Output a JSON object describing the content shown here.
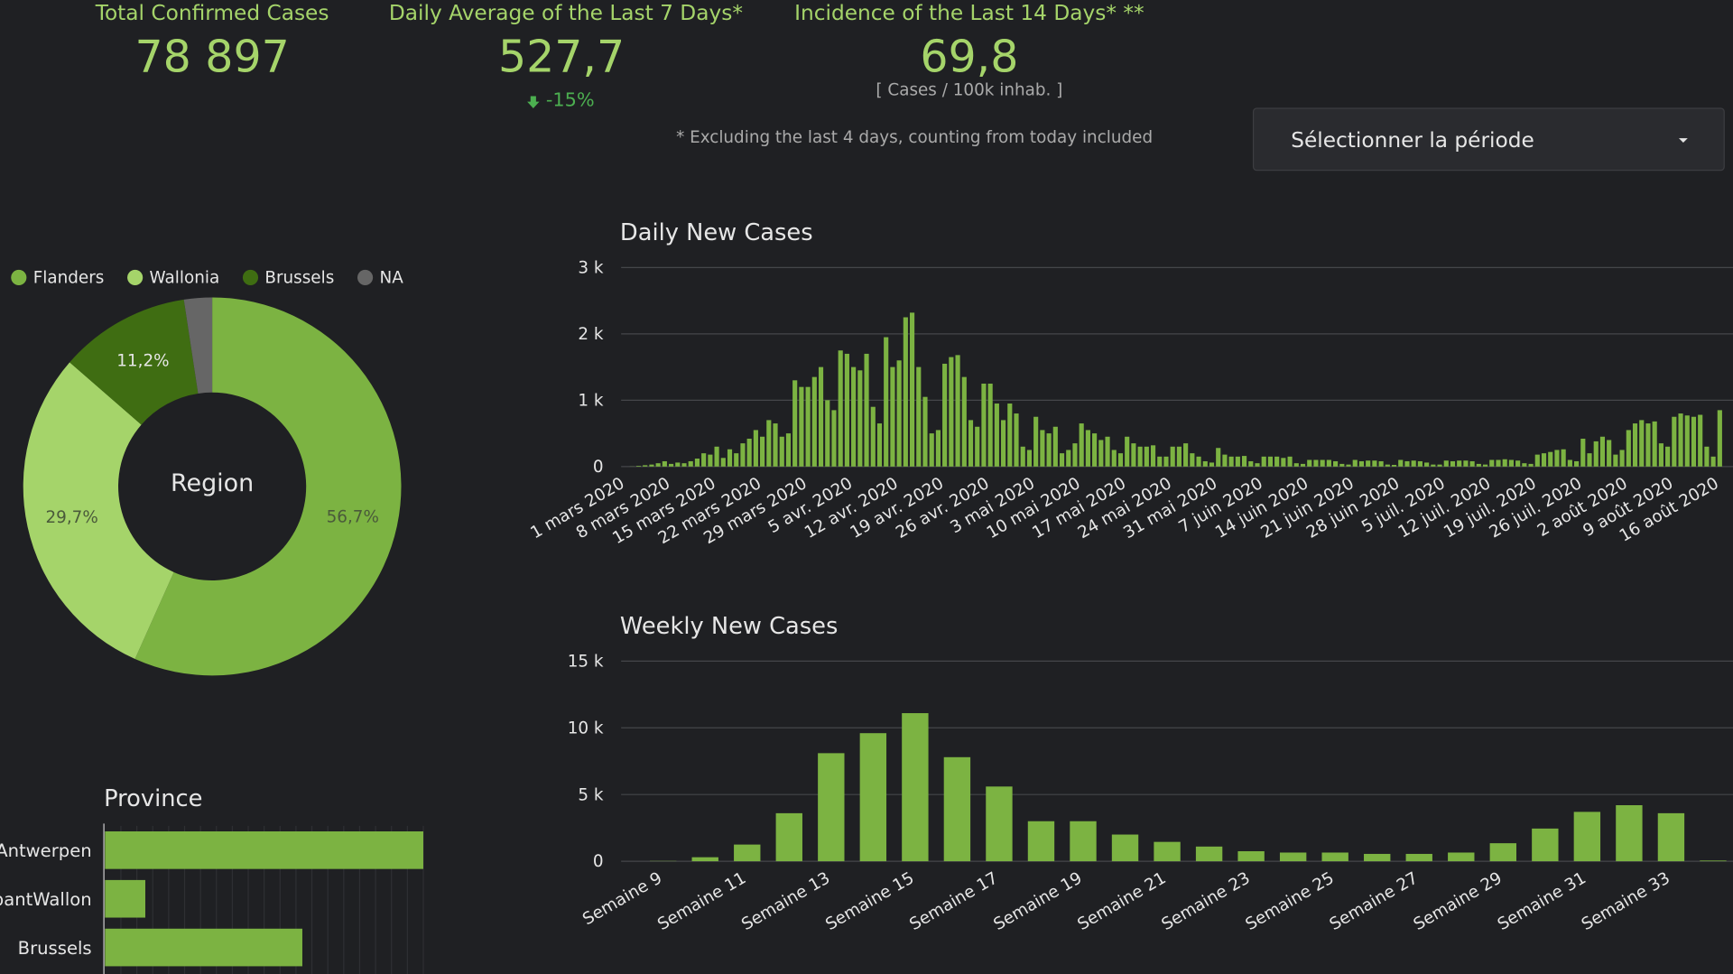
{
  "kpis": [
    {
      "title": "Total Confirmed Cases",
      "value": "78 897"
    },
    {
      "title": "Daily Average of the Last 7 Days*",
      "value": "527,7",
      "change": "-15%"
    },
    {
      "title": "Incidence of the Last 14 Days* **",
      "value": "69,8",
      "unit": "[ Cases / 100k inhab. ]"
    }
  ],
  "footnote": "* Excluding the last 4 days, counting from today included",
  "period_select": "Sélectionner la période",
  "chart_data": [
    {
      "type": "pie",
      "title": "Region",
      "series": [
        {
          "name": "Flanders",
          "color": "#7cb342"
        },
        {
          "name": "Wallonia",
          "color": "#a5d46a"
        },
        {
          "name": "Brussels",
          "color": "#3f6d12"
        },
        {
          "name": "NA",
          "color": "#666666"
        }
      ],
      "values": [
        56.7,
        29.7,
        11.2,
        2.4
      ],
      "value_labels": [
        "56,7%",
        "29,7%",
        "11,2%",
        null
      ]
    },
    {
      "type": "bar",
      "title": "Daily New Cases",
      "color": "#7cb342",
      "grid": true,
      "ylim": [
        0,
        3000
      ],
      "yticks": [
        0,
        {
          "value": 1000,
          "label": "1 k"
        },
        {
          "value": 2000,
          "label": "2 k"
        },
        {
          "value": 3000,
          "label": "3 k"
        }
      ],
      "categories": [
        "1 mars 2020",
        null,
        null,
        null,
        null,
        null,
        null,
        "8 mars 2020",
        null,
        null,
        null,
        null,
        null,
        null,
        "15 mars 2020",
        null,
        null,
        null,
        null,
        null,
        null,
        "22 mars 2020",
        null,
        null,
        null,
        null,
        null,
        null,
        "29 mars 2020",
        null,
        null,
        null,
        null,
        null,
        null,
        "5 avr. 2020",
        null,
        null,
        null,
        null,
        null,
        null,
        "12 avr. 2020",
        null,
        null,
        null,
        null,
        null,
        null,
        "19 avr. 2020",
        null,
        null,
        null,
        null,
        null,
        null,
        "26 avr. 2020",
        null,
        null,
        null,
        null,
        null,
        null,
        "3 mai 2020",
        null,
        null,
        null,
        null,
        null,
        null,
        "10 mai 2020",
        null,
        null,
        null,
        null,
        null,
        null,
        "17 mai 2020",
        null,
        null,
        null,
        null,
        null,
        null,
        "24 mai 2020",
        null,
        null,
        null,
        null,
        null,
        null,
        "31 mai 2020",
        null,
        null,
        null,
        null,
        null,
        null,
        "7 juin 2020",
        null,
        null,
        null,
        null,
        null,
        null,
        "14 juin 2020",
        null,
        null,
        null,
        null,
        null,
        null,
        "21 juin 2020",
        null,
        null,
        null,
        null,
        null,
        null,
        "28 juin 2020",
        null,
        null,
        null,
        null,
        null,
        null,
        "5 juil. 2020",
        null,
        null,
        null,
        null,
        null,
        null,
        "12 juil. 2020",
        null,
        null,
        null,
        null,
        null,
        null,
        "19 juil. 2020",
        null,
        null,
        null,
        null,
        null,
        null,
        "26 juil. 2020",
        null,
        null,
        null,
        null,
        null,
        null,
        "2 août 2020",
        null,
        null,
        null,
        null,
        null,
        null,
        "9 août 2020",
        null,
        null,
        null,
        null,
        null,
        null,
        "16 août 2020"
      ],
      "values": [
        0,
        2,
        10,
        20,
        30,
        50,
        80,
        40,
        60,
        50,
        80,
        120,
        200,
        180,
        300,
        130,
        260,
        200,
        350,
        420,
        550,
        450,
        700,
        650,
        450,
        500,
        1300,
        1200,
        1200,
        1350,
        1500,
        1000,
        850,
        1750,
        1700,
        1500,
        1450,
        1700,
        900,
        650,
        1950,
        1500,
        1600,
        2250,
        2320,
        1500,
        1050,
        500,
        550,
        1550,
        1650,
        1680,
        1350,
        700,
        600,
        1250,
        1250,
        950,
        700,
        950,
        800,
        300,
        250,
        750,
        550,
        500,
        600,
        200,
        250,
        350,
        650,
        550,
        500,
        400,
        450,
        250,
        200,
        450,
        350,
        300,
        300,
        320,
        150,
        150,
        300,
        300,
        350,
        200,
        150,
        80,
        60,
        280,
        180,
        150,
        150,
        160,
        80,
        50,
        150,
        150,
        150,
        130,
        150,
        50,
        40,
        100,
        100,
        100,
        100,
        80,
        40,
        30,
        100,
        80,
        90,
        90,
        80,
        30,
        25,
        100,
        80,
        90,
        80,
        60,
        30,
        30,
        90,
        80,
        90,
        90,
        80,
        40,
        30,
        100,
        100,
        110,
        100,
        90,
        50,
        40,
        180,
        200,
        220,
        250,
        260,
        100,
        80,
        420,
        200,
        380,
        450,
        400,
        180,
        250,
        550,
        650,
        700,
        650,
        680,
        350,
        300,
        750,
        800,
        770,
        750,
        780,
        300,
        150,
        850
      ]
    },
    {
      "type": "bar",
      "title": "Weekly New Cases",
      "color": "#7cb342",
      "grid": true,
      "ylim": [
        0,
        15000
      ],
      "yticks": [
        0,
        {
          "value": 5000,
          "label": "5 k"
        },
        {
          "value": 10000,
          "label": "10 k"
        },
        {
          "value": 15000,
          "label": "15 k"
        }
      ],
      "categories": [
        "Semaine 9",
        null,
        "Semaine 11",
        null,
        "Semaine 13",
        null,
        "Semaine 15",
        null,
        "Semaine 17",
        null,
        "Semaine 19",
        null,
        "Semaine 21",
        null,
        "Semaine 23",
        null,
        "Semaine 25",
        null,
        "Semaine 27",
        null,
        "Semaine 29",
        null,
        "Semaine 31",
        null,
        "Semaine 33",
        null
      ],
      "values": [
        20,
        300,
        1250,
        3600,
        8100,
        9600,
        11100,
        7800,
        5600,
        3000,
        3000,
        2000,
        1450,
        1100,
        750,
        650,
        650,
        550,
        550,
        650,
        1350,
        2450,
        3700,
        4200,
        3600,
        50
      ]
    },
    {
      "type": "barh",
      "title": "Province",
      "color": "#7cb342",
      "xlim": [
        0,
        15000
      ],
      "categories": [
        "Antwerpen",
        "BrabantWallon",
        "Brussels"
      ],
      "values": [
        15000,
        1900,
        9300
      ]
    }
  ]
}
